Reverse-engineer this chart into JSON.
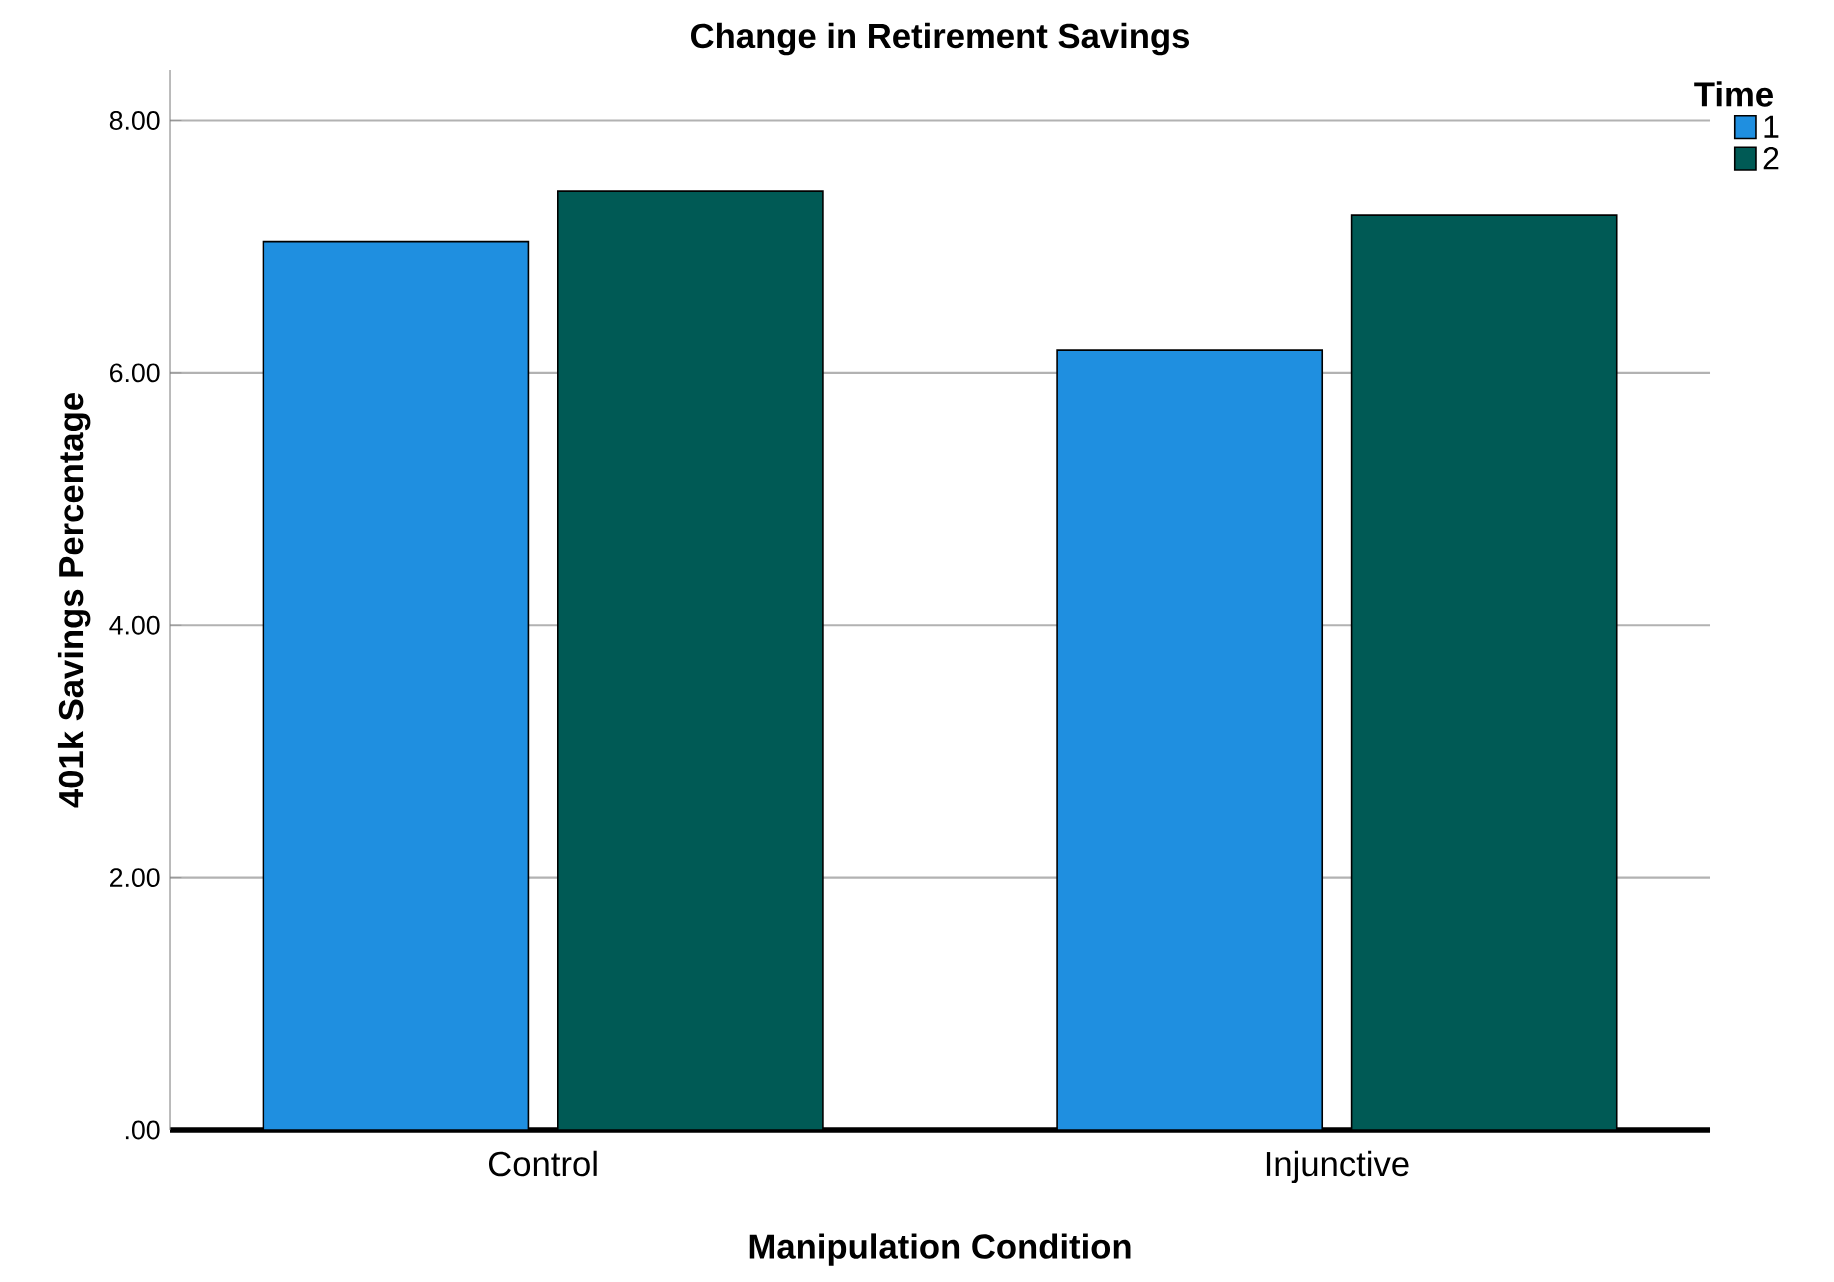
{
  "chart_data": {
    "type": "bar",
    "title": "Change in Retirement Savings",
    "xlabel": "Manipulation Condition",
    "ylabel": "401k Savings Percentage",
    "legend_title": "Time",
    "categories": [
      "Control",
      "Injunctive"
    ],
    "series": [
      {
        "name": "1",
        "color": "#1f8fe0",
        "values": [
          7.04,
          6.18
        ]
      },
      {
        "name": "2",
        "color": "#005a55",
        "values": [
          7.44,
          7.25
        ]
      }
    ],
    "ylim": [
      0,
      8.4
    ],
    "yticks": [
      {
        "value": 0,
        "label": ".00"
      },
      {
        "value": 2,
        "label": "2.00"
      },
      {
        "value": 4,
        "label": "4.00"
      },
      {
        "value": 6,
        "label": "6.00"
      },
      {
        "value": 8,
        "label": "8.00"
      }
    ],
    "grid": "y",
    "legend": "top right"
  }
}
